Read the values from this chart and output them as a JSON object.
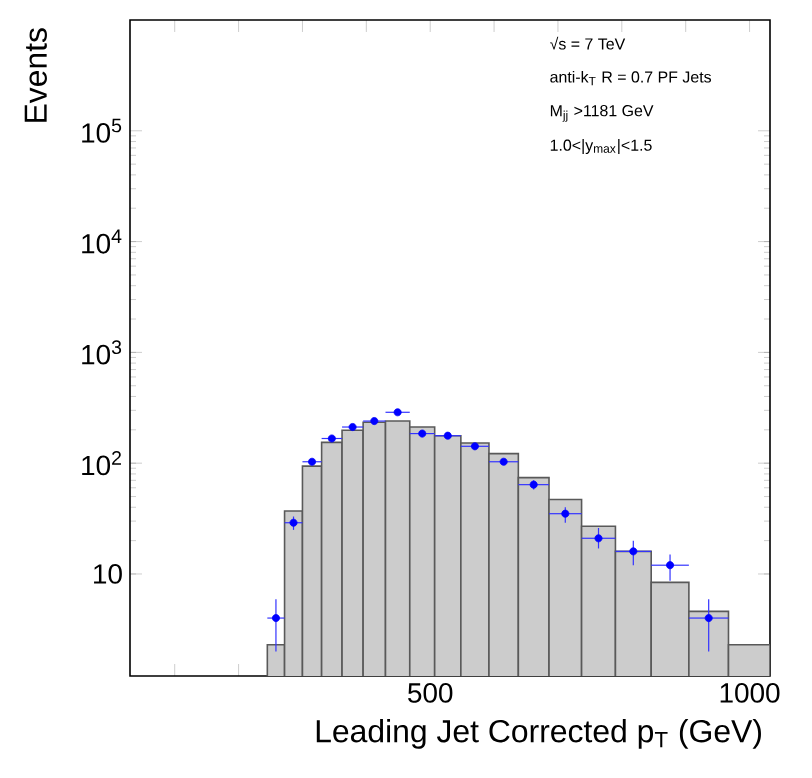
{
  "chart_data": {
    "type": "histogram",
    "xlabel": "Leading Jet Corrected p$_{T}$ (GeV)",
    "ylabel": "Events",
    "log": "y",
    "marker": "circle",
    "annotations": [
      "√s = 7 TeV",
      "anti-k$_{T}$ R = 0.7 PF Jets",
      "M$_{jj}$ >1181 GeV",
      "1.0<|y$_{max}$|<1.5"
    ],
    "xlim": [
      30,
      1032
    ],
    "ylim": [
      1.2,
      1000000
    ],
    "xticks": [
      {
        "value": 100,
        "label": null
      },
      {
        "value": 200,
        "label": null
      },
      {
        "value": 300,
        "label": null
      },
      {
        "value": 400,
        "label": null
      },
      500,
      {
        "value": 600,
        "label": null
      },
      {
        "value": 700,
        "label": null
      },
      {
        "value": 800,
        "label": null
      },
      {
        "value": 900,
        "label": null
      },
      1000
    ],
    "yticks": [
      10,
      {
        "value": 100,
        "label": "10$^{2}$"
      },
      {
        "value": 1000,
        "label": "10$^{3}$"
      },
      {
        "value": 10000,
        "label": "10$^{4}$"
      },
      {
        "value": 100000,
        "label": "10$^{5}$"
      }
    ],
    "series": [
      {
        "color": "#cccccc",
        "bins": [
          245,
          272,
          300,
          330,
          362,
          395,
          430,
          468,
          507,
          548,
          592,
          638,
          686,
          737,
          790,
          846,
          905,
          967,
          1032
        ],
        "values": [
          2.3,
          37,
          94,
          154,
          198,
          234,
          240,
          212,
          177,
          152,
          122,
          74,
          47,
          27,
          16,
          8.4,
          4.6,
          2.3
        ]
      },
      {
        "type": "scatter",
        "color": "#0000ff",
        "x": [
          258.5,
          286,
          315,
          346,
          378.5,
          412.5,
          449,
          487.5,
          527.5,
          570,
          615,
          662,
          711.5,
          763.5,
          818,
          875.5,
          936
        ],
        "values": [
          4.0,
          29,
          103,
          167,
          212,
          240,
          288,
          185,
          177,
          142,
          103,
          64,
          35,
          21,
          16,
          12,
          4.0
        ],
        "errors": [
          [
            2.0,
            5.9
          ],
          [
            25,
            33
          ],
          null,
          null,
          null,
          null,
          null,
          null,
          null,
          null,
          null,
          [
            58,
            70
          ],
          [
            29,
            40
          ],
          [
            17,
            26
          ],
          [
            12,
            20
          ],
          [
            8.7,
            15
          ],
          [
            2.0,
            5.9
          ]
        ],
        "xerrors": [
          13.5,
          14,
          15,
          16,
          16.5,
          17.5,
          19,
          19.5,
          20.5,
          22,
          23,
          24,
          25.5,
          26.5,
          28,
          29.5,
          31
        ]
      }
    ]
  }
}
